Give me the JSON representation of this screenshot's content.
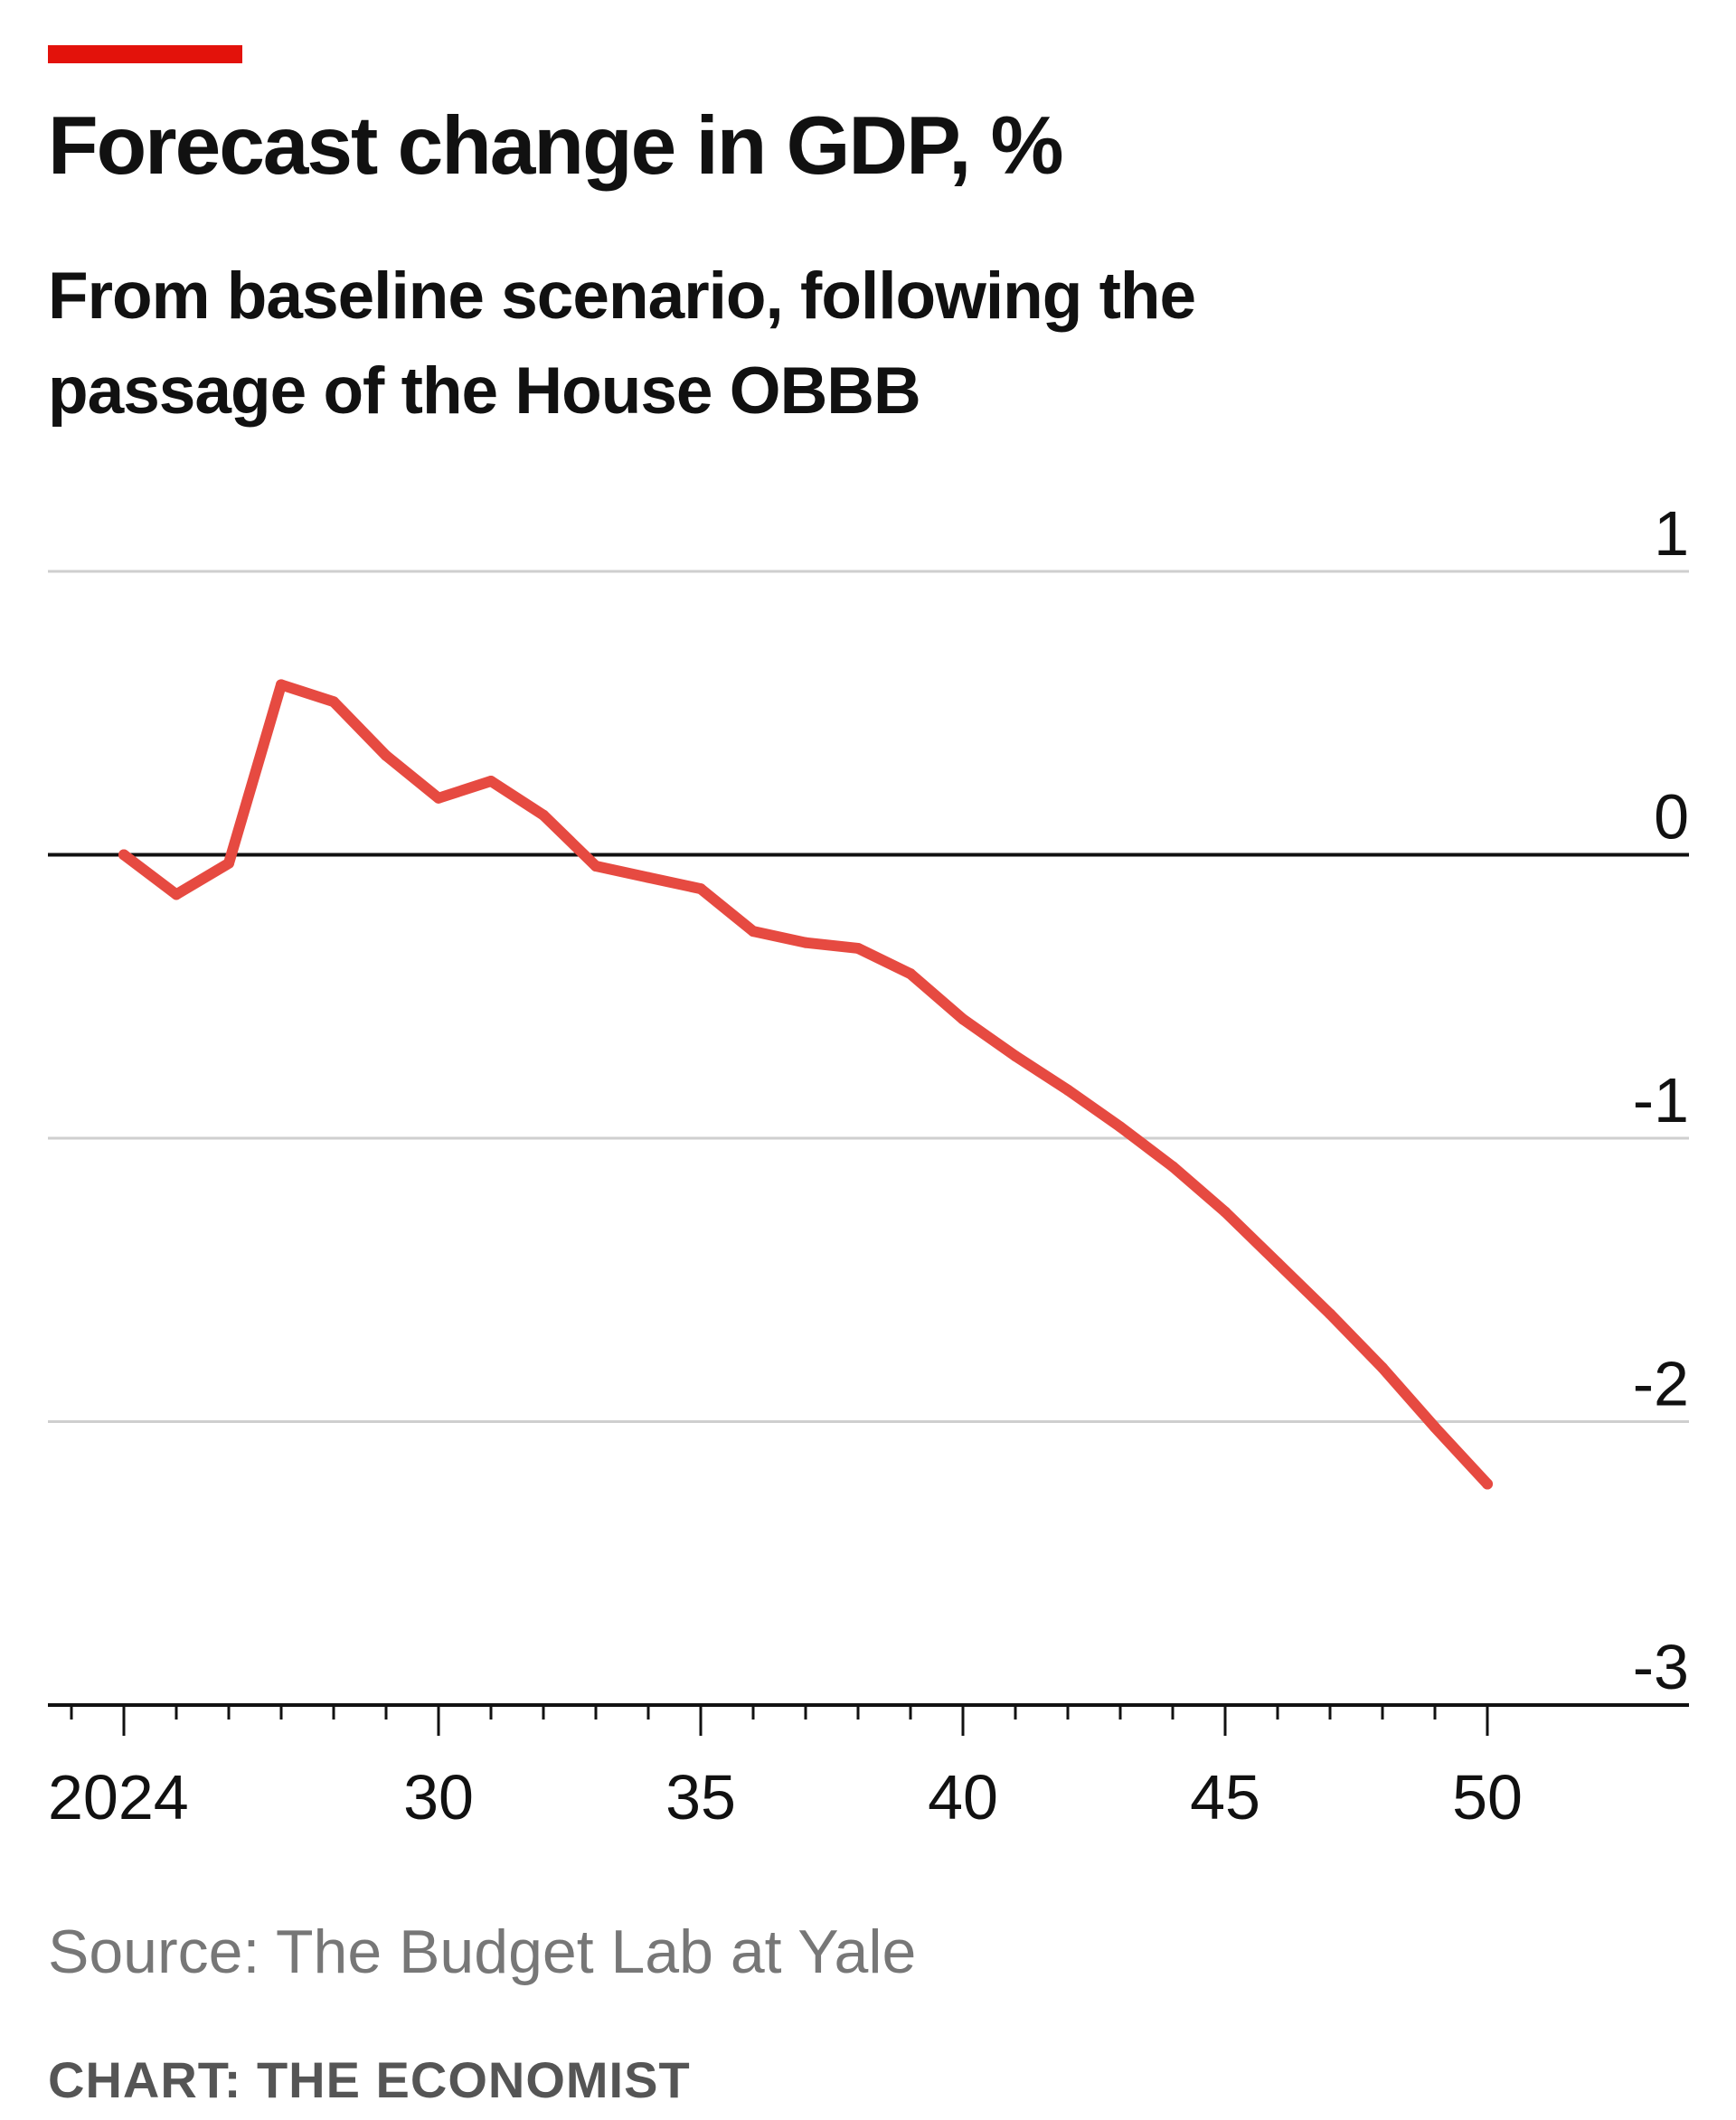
{
  "header": {
    "accent_color": "#e3120b",
    "title": "Forecast change in GDP, %",
    "subtitle": "From baseline scenario, following the passage of the House OBBB"
  },
  "footer": {
    "source": "Source: The Budget Lab at Yale",
    "credit": "CHART: THE ECONOMIST"
  },
  "chart_data": {
    "type": "line",
    "title": "Forecast change in GDP, %",
    "subtitle": "From baseline scenario, following the passage of the House OBBB",
    "xlabel": "",
    "ylabel": "",
    "xlim": [
      2022,
      2054
    ],
    "ylim": [
      -3,
      1
    ],
    "x_ticks": [
      2024,
      2030,
      2035,
      2040,
      2045,
      2050
    ],
    "x_tick_labels": [
      "2024",
      "30",
      "35",
      "40",
      "45",
      "50"
    ],
    "y_ticks": [
      1,
      0,
      -1,
      -2,
      -3
    ],
    "y_tick_labels": [
      "1",
      "0",
      "-1",
      "-2",
      "-3"
    ],
    "grid": true,
    "line_color": "#e64a41",
    "series": [
      {
        "x": [
          2024,
          2025,
          2026,
          2027,
          2028,
          2029,
          2030,
          2031,
          2032,
          2033,
          2034,
          2035,
          2036,
          2037,
          2038,
          2039,
          2040,
          2041,
          2042,
          2043,
          2044,
          2045,
          2046,
          2047,
          2048,
          2049,
          2050
        ],
        "values": [
          0.0,
          -0.14,
          -0.03,
          0.6,
          0.54,
          0.35,
          0.2,
          0.26,
          0.14,
          -0.04,
          -0.08,
          -0.12,
          -0.27,
          -0.31,
          -0.33,
          -0.42,
          -0.58,
          -0.71,
          -0.83,
          -0.96,
          -1.1,
          -1.26,
          -1.44,
          -1.62,
          -1.81,
          -2.02,
          -2.22
        ]
      }
    ]
  }
}
